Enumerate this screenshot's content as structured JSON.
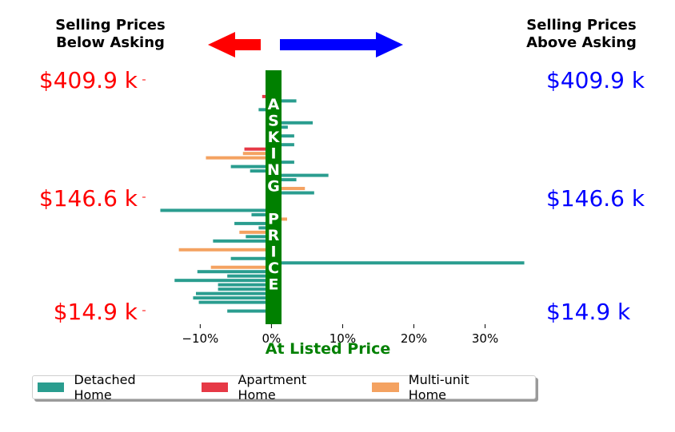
{
  "header": {
    "left_text": "Selling Prices\nBelow Asking",
    "right_text": "Selling Prices\nAbove Asking",
    "left_color": "#ff0000",
    "right_color": "#0000ff"
  },
  "price_labels": {
    "left": [
      "$409.9 k",
      "$146.6 k",
      "$14.9 k"
    ],
    "right": [
      "$409.9 k",
      "$146.6 k",
      "$14.9 k"
    ]
  },
  "center_text": "ASKING PRICE",
  "x_axis_label": "At Listed Price",
  "legend": [
    {
      "label": "Detached Home",
      "color": "#2a9d8f"
    },
    {
      "label": "Apartment Home",
      "color": "#e63946"
    },
    {
      "label": "Multi-unit Home",
      "color": "#f4a261"
    }
  ],
  "chart_data": {
    "type": "bar",
    "orientation": "horizontal",
    "xlabel": "At Listed Price",
    "xlim": [
      -0.17,
      0.36
    ],
    "xticks": [
      -0.1,
      0,
      0.1,
      0.2,
      0.3
    ],
    "xtick_labels": [
      "−10%",
      "0%",
      "10%",
      "20%",
      "30%"
    ],
    "ylim": [
      -2,
      56
    ],
    "colors": {
      "Detached Home": "#2a9d8f",
      "Apartment Home": "#e63946",
      "Multi-unit Home": "#f4a261"
    },
    "bars": [
      {
        "pos": 1,
        "value": -0.062,
        "type": "Detached Home"
      },
      {
        "pos": 2,
        "value": 0.011,
        "type": "Detached Home"
      },
      {
        "pos": 3,
        "value": -0.102,
        "type": "Detached Home"
      },
      {
        "pos": 4,
        "value": -0.11,
        "type": "Detached Home"
      },
      {
        "pos": 5,
        "value": -0.106,
        "type": "Detached Home"
      },
      {
        "pos": 6,
        "value": -0.075,
        "type": "Detached Home"
      },
      {
        "pos": 7,
        "value": -0.075,
        "type": "Detached Home"
      },
      {
        "pos": 8,
        "value": -0.136,
        "type": "Detached Home"
      },
      {
        "pos": 9,
        "value": -0.062,
        "type": "Detached Home"
      },
      {
        "pos": 10,
        "value": -0.104,
        "type": "Detached Home"
      },
      {
        "pos": 11,
        "value": -0.085,
        "type": "Multi-unit Home"
      },
      {
        "pos": 12,
        "value": 0.355,
        "type": "Detached Home"
      },
      {
        "pos": 13,
        "value": -0.057,
        "type": "Detached Home"
      },
      {
        "pos": 14,
        "value": 0.011,
        "type": "Detached Home"
      },
      {
        "pos": 15,
        "value": -0.13,
        "type": "Multi-unit Home"
      },
      {
        "pos": 16,
        "value": 0.009,
        "type": "Detached Home"
      },
      {
        "pos": 17,
        "value": -0.082,
        "type": "Detached Home"
      },
      {
        "pos": 18,
        "value": -0.036,
        "type": "Detached Home"
      },
      {
        "pos": 19,
        "value": -0.045,
        "type": "Multi-unit Home"
      },
      {
        "pos": 20,
        "value": -0.018,
        "type": "Detached Home"
      },
      {
        "pos": 21,
        "value": -0.052,
        "type": "Detached Home"
      },
      {
        "pos": 22,
        "value": 0.022,
        "type": "Multi-unit Home"
      },
      {
        "pos": 23,
        "value": -0.028,
        "type": "Detached Home"
      },
      {
        "pos": 24,
        "value": -0.156,
        "type": "Detached Home"
      },
      {
        "pos": 26,
        "value": 0.011,
        "type": "Detached Home"
      },
      {
        "pos": 28,
        "value": 0.06,
        "type": "Detached Home"
      },
      {
        "pos": 29,
        "value": 0.047,
        "type": "Multi-unit Home"
      },
      {
        "pos": 30,
        "value": 0.006,
        "type": "Detached Home"
      },
      {
        "pos": 31,
        "value": 0.035,
        "type": "Detached Home"
      },
      {
        "pos": 32,
        "value": 0.08,
        "type": "Detached Home"
      },
      {
        "pos": 33,
        "value": -0.03,
        "type": "Detached Home"
      },
      {
        "pos": 34,
        "value": -0.057,
        "type": "Detached Home"
      },
      {
        "pos": 35,
        "value": 0.032,
        "type": "Detached Home"
      },
      {
        "pos": 36,
        "value": -0.092,
        "type": "Multi-unit Home"
      },
      {
        "pos": 37,
        "value": -0.04,
        "type": "Multi-unit Home"
      },
      {
        "pos": 38,
        "value": -0.038,
        "type": "Apartment Home"
      },
      {
        "pos": 39,
        "value": 0.032,
        "type": "Detached Home"
      },
      {
        "pos": 41,
        "value": 0.032,
        "type": "Detached Home"
      },
      {
        "pos": 42,
        "value": 0.009,
        "type": "Detached Home"
      },
      {
        "pos": 43,
        "value": 0.023,
        "type": "Detached Home"
      },
      {
        "pos": 44,
        "value": 0.058,
        "type": "Detached Home"
      },
      {
        "pos": 46,
        "value": 0.007,
        "type": "Detached Home"
      },
      {
        "pos": 47,
        "value": -0.018,
        "type": "Detached Home"
      },
      {
        "pos": 49,
        "value": 0.035,
        "type": "Detached Home"
      },
      {
        "pos": 50,
        "value": -0.013,
        "type": "Apartment Home"
      },
      {
        "pos": 51,
        "value": 0.011,
        "type": "Detached Home"
      }
    ]
  }
}
